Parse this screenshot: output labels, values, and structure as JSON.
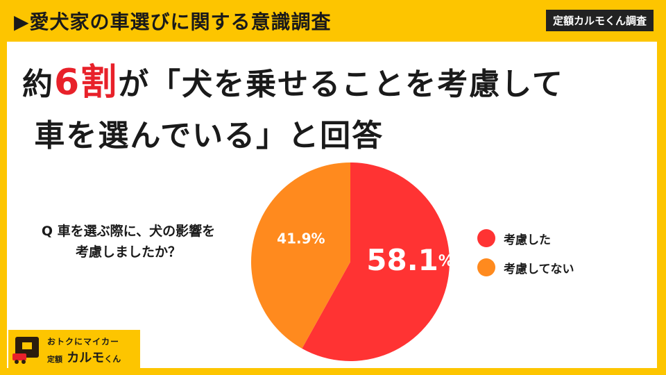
{
  "header": {
    "title": "▶愛犬家の車選びに関する意識調査",
    "badge": "定額カルモくん調査"
  },
  "headline": {
    "prefix": "約",
    "highlight": "6割",
    "line1_rest": "が「犬を乗せることを考慮して",
    "line2": " 車を選んでいる」と回答"
  },
  "question": {
    "line1": "Q 車を選ぶ際に、犬の影響を",
    "line2": "考慮しましたか？"
  },
  "chart_data": {
    "type": "pie",
    "categories": [
      "考慮した",
      "考慮してない"
    ],
    "values": [
      58.1,
      41.9
    ],
    "labels": [
      "58.1",
      "41.9%"
    ],
    "label_suffix": "%",
    "colors": [
      "#ff3333",
      "#ff8a1e"
    ],
    "legend_position": "right"
  },
  "logo": {
    "tagline": "おトクにマイカー",
    "brand_prefix": "定額",
    "brand_main": "カルモ",
    "brand_suffix": "くん"
  }
}
